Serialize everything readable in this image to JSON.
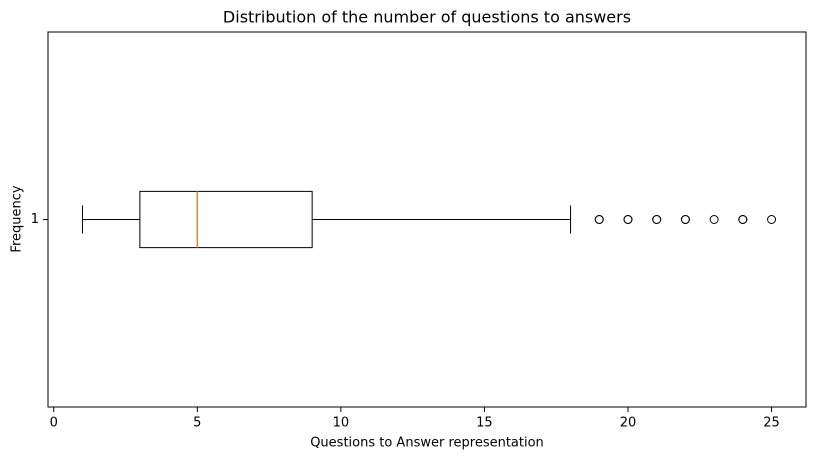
{
  "chart_data": {
    "type": "boxplot",
    "orientation": "horizontal",
    "title": "Distribution of the number of questions to answers",
    "x_label": "Questions to Answer representation",
    "y_label": "Frequency",
    "xlim": [
      -0.2,
      26.2
    ],
    "xticks": [
      0,
      5,
      10,
      15,
      20,
      25
    ],
    "ylim": [
      0.5,
      1.5
    ],
    "yticks": [
      1
    ],
    "box_color": "#000000",
    "median_color": "#ff7f0e",
    "boxes": [
      {
        "position": 1,
        "whislo": 1,
        "q1": 3,
        "med": 5,
        "q3": 9,
        "whishi": 18,
        "fliers": [
          19,
          19,
          20,
          20,
          21,
          21,
          22,
          22,
          23,
          24,
          24,
          25
        ]
      }
    ]
  }
}
